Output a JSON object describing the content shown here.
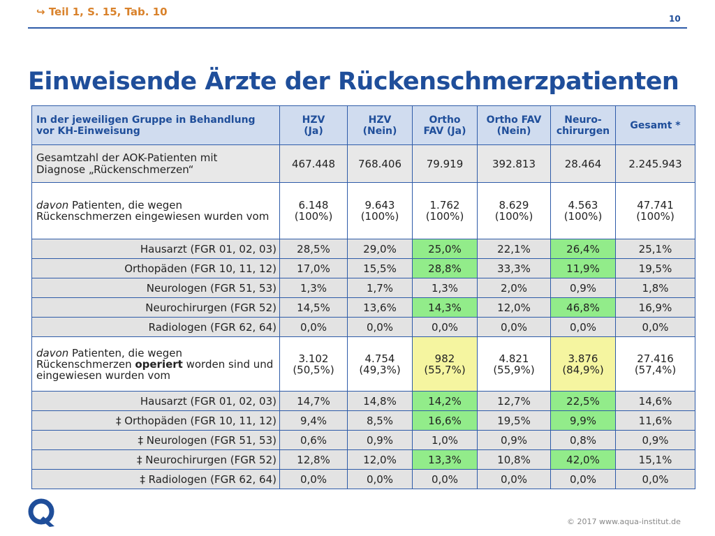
{
  "header": {
    "reference": "Teil 1, S. 15, Tab. 10",
    "reference_icon": "arrow-right-hook-icon",
    "page_number": "10"
  },
  "title": "Einweisende Ärzte der Rückenschmerzpatienten",
  "footer": {
    "copyright": "© 2017 www.aqua-institut.de",
    "logo": "aqua-q-logo"
  },
  "colors": {
    "accent": "#1f4e9a",
    "orange": "#d9822b",
    "highlight_green": "#92ec8a",
    "highlight_yellow": "#f5f5a0"
  },
  "table": {
    "header": {
      "label": "In der jeweiligen Gruppe in Behandlung vor KH-Einweisung",
      "columns": [
        "HZV (Ja)",
        "HZV (Nein)",
        "Ortho FAV (Ja)",
        "Ortho FAV (Nein)",
        "Neuro-chirurgen",
        "Gesamt *"
      ]
    },
    "total_row": {
      "label": "Gesamtzahl der AOK-Patienten mit Diagnose „Rückenschmerzen“",
      "values": [
        "467.448",
        "768.406",
        "79.919",
        "392.813",
        "28.464",
        "2.245.943"
      ]
    },
    "group1": {
      "label_italic": "davon",
      "label_rest": " Patienten, die wegen Rückenschmerzen eingewiesen wurden vom",
      "values": [
        {
          "n": "6.148",
          "p": "(100%)"
        },
        {
          "n": "9.643",
          "p": "(100%)"
        },
        {
          "n": "1.762",
          "p": "(100%)"
        },
        {
          "n": "8.629",
          "p": "(100%)"
        },
        {
          "n": "4.563",
          "p": "(100%)"
        },
        {
          "n": "47.741",
          "p": "(100%)"
        }
      ],
      "rows": [
        {
          "label": "Hausarzt (FGR 01, 02, 03)",
          "values": [
            "28,5%",
            "29,0%",
            "25,0%",
            "22,1%",
            "26,4%",
            "25,1%"
          ]
        },
        {
          "label": "Orthopäden (FGR 10, 11, 12)",
          "values": [
            "17,0%",
            "15,5%",
            "28,8%",
            "33,3%",
            "11,9%",
            "19,5%"
          ]
        },
        {
          "label": "Neurologen (FGR 51, 53)",
          "values": [
            "1,3%",
            "1,7%",
            "1,3%",
            "2,0%",
            "0,9%",
            "1,8%"
          ]
        },
        {
          "label": "Neurochirurgen (FGR 52)",
          "values": [
            "14,5%",
            "13,6%",
            "14,3%",
            "12,0%",
            "46,8%",
            "16,9%"
          ]
        },
        {
          "label": "Radiologen (FGR 62, 64)",
          "values": [
            "0,0%",
            "0,0%",
            "0,0%",
            "0,0%",
            "0,0%",
            "0,0%"
          ]
        }
      ]
    },
    "group2": {
      "label_italic": "davon",
      "label_part1": " Patienten, die wegen Rückenschmerzen ",
      "label_bold": "operiert",
      "label_part2": " worden sind und eingewiesen wurden vom",
      "values": [
        {
          "n": "3.102",
          "p": "(50,5%)"
        },
        {
          "n": "4.754",
          "p": "(49,3%)"
        },
        {
          "n": "982",
          "p": "(55,7%)"
        },
        {
          "n": "4.821",
          "p": "(55,9%)"
        },
        {
          "n": "3.876",
          "p": "(84,9%)"
        },
        {
          "n": "27.416",
          "p": "(57,4%)"
        }
      ],
      "rows": [
        {
          "label": "Hausarzt (FGR 01, 02, 03)",
          "values": [
            "14,7%",
            "14,8%",
            "14,2%",
            "12,7%",
            "22,5%",
            "14,6%"
          ]
        },
        {
          "label": "‡ Orthopäden (FGR 10, 11, 12)",
          "values": [
            "9,4%",
            "8,5%",
            "16,6%",
            "19,5%",
            "9,9%",
            "11,6%"
          ]
        },
        {
          "label": "‡ Neurologen (FGR 51, 53)",
          "values": [
            "0,6%",
            "0,9%",
            "1,0%",
            "0,9%",
            "0,8%",
            "0,9%"
          ]
        },
        {
          "label": "‡ Neurochirurgen (FGR 52)",
          "values": [
            "12,8%",
            "12,0%",
            "13,3%",
            "10,8%",
            "42,0%",
            "15,1%"
          ]
        },
        {
          "label": "‡ Radiologen (FGR 62, 64)",
          "values": [
            "0,0%",
            "0,0%",
            "0,0%",
            "0,0%",
            "0,0%",
            "0,0%"
          ]
        }
      ]
    }
  },
  "chart_data": {
    "type": "table",
    "title": "Einweisende Ärzte der Rückenschmerzpatienten",
    "columns": [
      "HZV (Ja)",
      "HZV (Nein)",
      "Ortho FAV (Ja)",
      "Ortho FAV (Nein)",
      "Neuro-chirurgen",
      "Gesamt *"
    ],
    "rows": [
      {
        "label": "Gesamtzahl der AOK-Patienten mit Diagnose „Rückenschmerzen“",
        "values": [
          467448,
          768406,
          79919,
          392813,
          28464,
          2245943
        ]
      },
      {
        "label": "davon Patienten, die wegen Rückenschmerzen eingewiesen wurden vom",
        "values": [
          6148,
          9643,
          1762,
          8629,
          4563,
          47741
        ]
      },
      {
        "label": "Hausarzt (FGR 01, 02, 03)",
        "values": [
          28.5,
          29.0,
          25.0,
          22.1,
          26.4,
          25.1
        ]
      },
      {
        "label": "Orthopäden (FGR 10, 11, 12)",
        "values": [
          17.0,
          15.5,
          28.8,
          33.3,
          11.9,
          19.5
        ]
      },
      {
        "label": "Neurologen (FGR 51, 53)",
        "values": [
          1.3,
          1.7,
          1.3,
          2.0,
          0.9,
          1.8
        ]
      },
      {
        "label": "Neurochirurgen (FGR 52)",
        "values": [
          14.5,
          13.6,
          14.3,
          12.0,
          46.8,
          16.9
        ]
      },
      {
        "label": "Radiologen (FGR 62, 64)",
        "values": [
          0.0,
          0.0,
          0.0,
          0.0,
          0.0,
          0.0
        ]
      },
      {
        "label": "davon Patienten, die wegen Rückenschmerzen operiert worden sind und eingewiesen wurden vom",
        "values": [
          3102,
          4754,
          982,
          4821,
          3876,
          27416
        ]
      },
      {
        "label": "Hausarzt (FGR 01, 02, 03)",
        "values": [
          14.7,
          14.8,
          14.2,
          12.7,
          22.5,
          14.6
        ]
      },
      {
        "label": "‡ Orthopäden (FGR 10, 11, 12)",
        "values": [
          9.4,
          8.5,
          16.6,
          19.5,
          9.9,
          11.6
        ]
      },
      {
        "label": "‡ Neurologen (FGR 51, 53)",
        "values": [
          0.6,
          0.9,
          1.0,
          0.9,
          0.8,
          0.9
        ]
      },
      {
        "label": "‡ Neurochirurgen (FGR 52)",
        "values": [
          12.8,
          12.0,
          13.3,
          10.8,
          42.0,
          15.1
        ]
      },
      {
        "label": "‡ Radiologen (FGR 62, 64)",
        "values": [
          0.0,
          0.0,
          0.0,
          0.0,
          0.0,
          0.0
        ]
      }
    ]
  }
}
